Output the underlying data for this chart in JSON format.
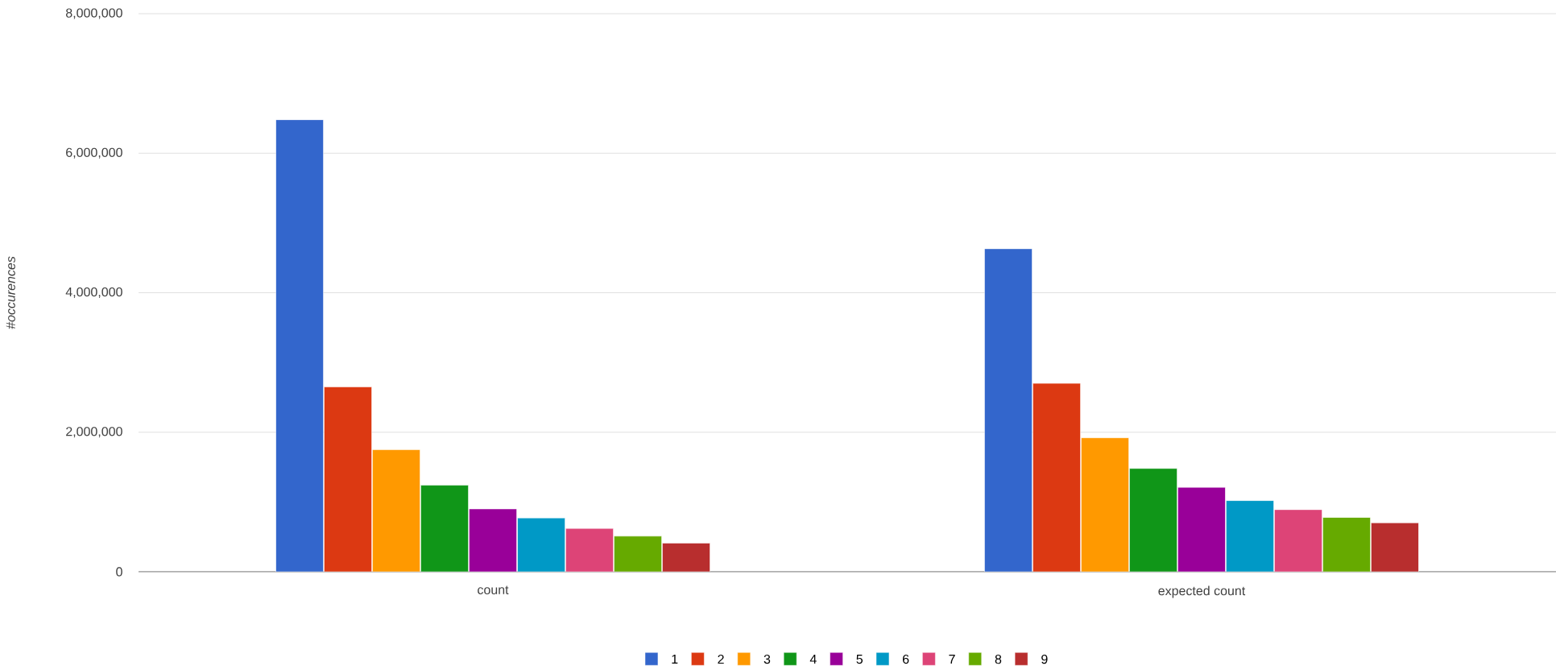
{
  "chart_data": {
    "type": "bar",
    "ylabel": "#occurences",
    "categories": [
      "count",
      "expected count"
    ],
    "series": [
      {
        "name": "1",
        "color": "#3366cc",
        "values": [
          6480000,
          4630000
        ]
      },
      {
        "name": "2",
        "color": "#dc3912",
        "values": [
          2650000,
          2700000
        ]
      },
      {
        "name": "3",
        "color": "#ff9900",
        "values": [
          1750000,
          1920000
        ]
      },
      {
        "name": "4",
        "color": "#109618",
        "values": [
          1240000,
          1480000
        ]
      },
      {
        "name": "5",
        "color": "#990099",
        "values": [
          900000,
          1210000
        ]
      },
      {
        "name": "6",
        "color": "#0099c6",
        "values": [
          770000,
          1020000
        ]
      },
      {
        "name": "7",
        "color": "#dd4477",
        "values": [
          620000,
          890000
        ]
      },
      {
        "name": "8",
        "color": "#66aa00",
        "values": [
          510000,
          780000
        ]
      },
      {
        "name": "9",
        "color": "#b82e2e",
        "values": [
          410000,
          700000
        ]
      }
    ],
    "ylim": [
      0,
      8000000
    ],
    "yticks": [
      {
        "value": 0,
        "label": "0"
      },
      {
        "value": 2000000,
        "label": "2,000,000"
      },
      {
        "value": 4000000,
        "label": "4,000,000"
      },
      {
        "value": 6000000,
        "label": "6,000,000"
      },
      {
        "value": 8000000,
        "label": "8,000,000"
      }
    ],
    "grid": "y",
    "legend": "bottom"
  }
}
